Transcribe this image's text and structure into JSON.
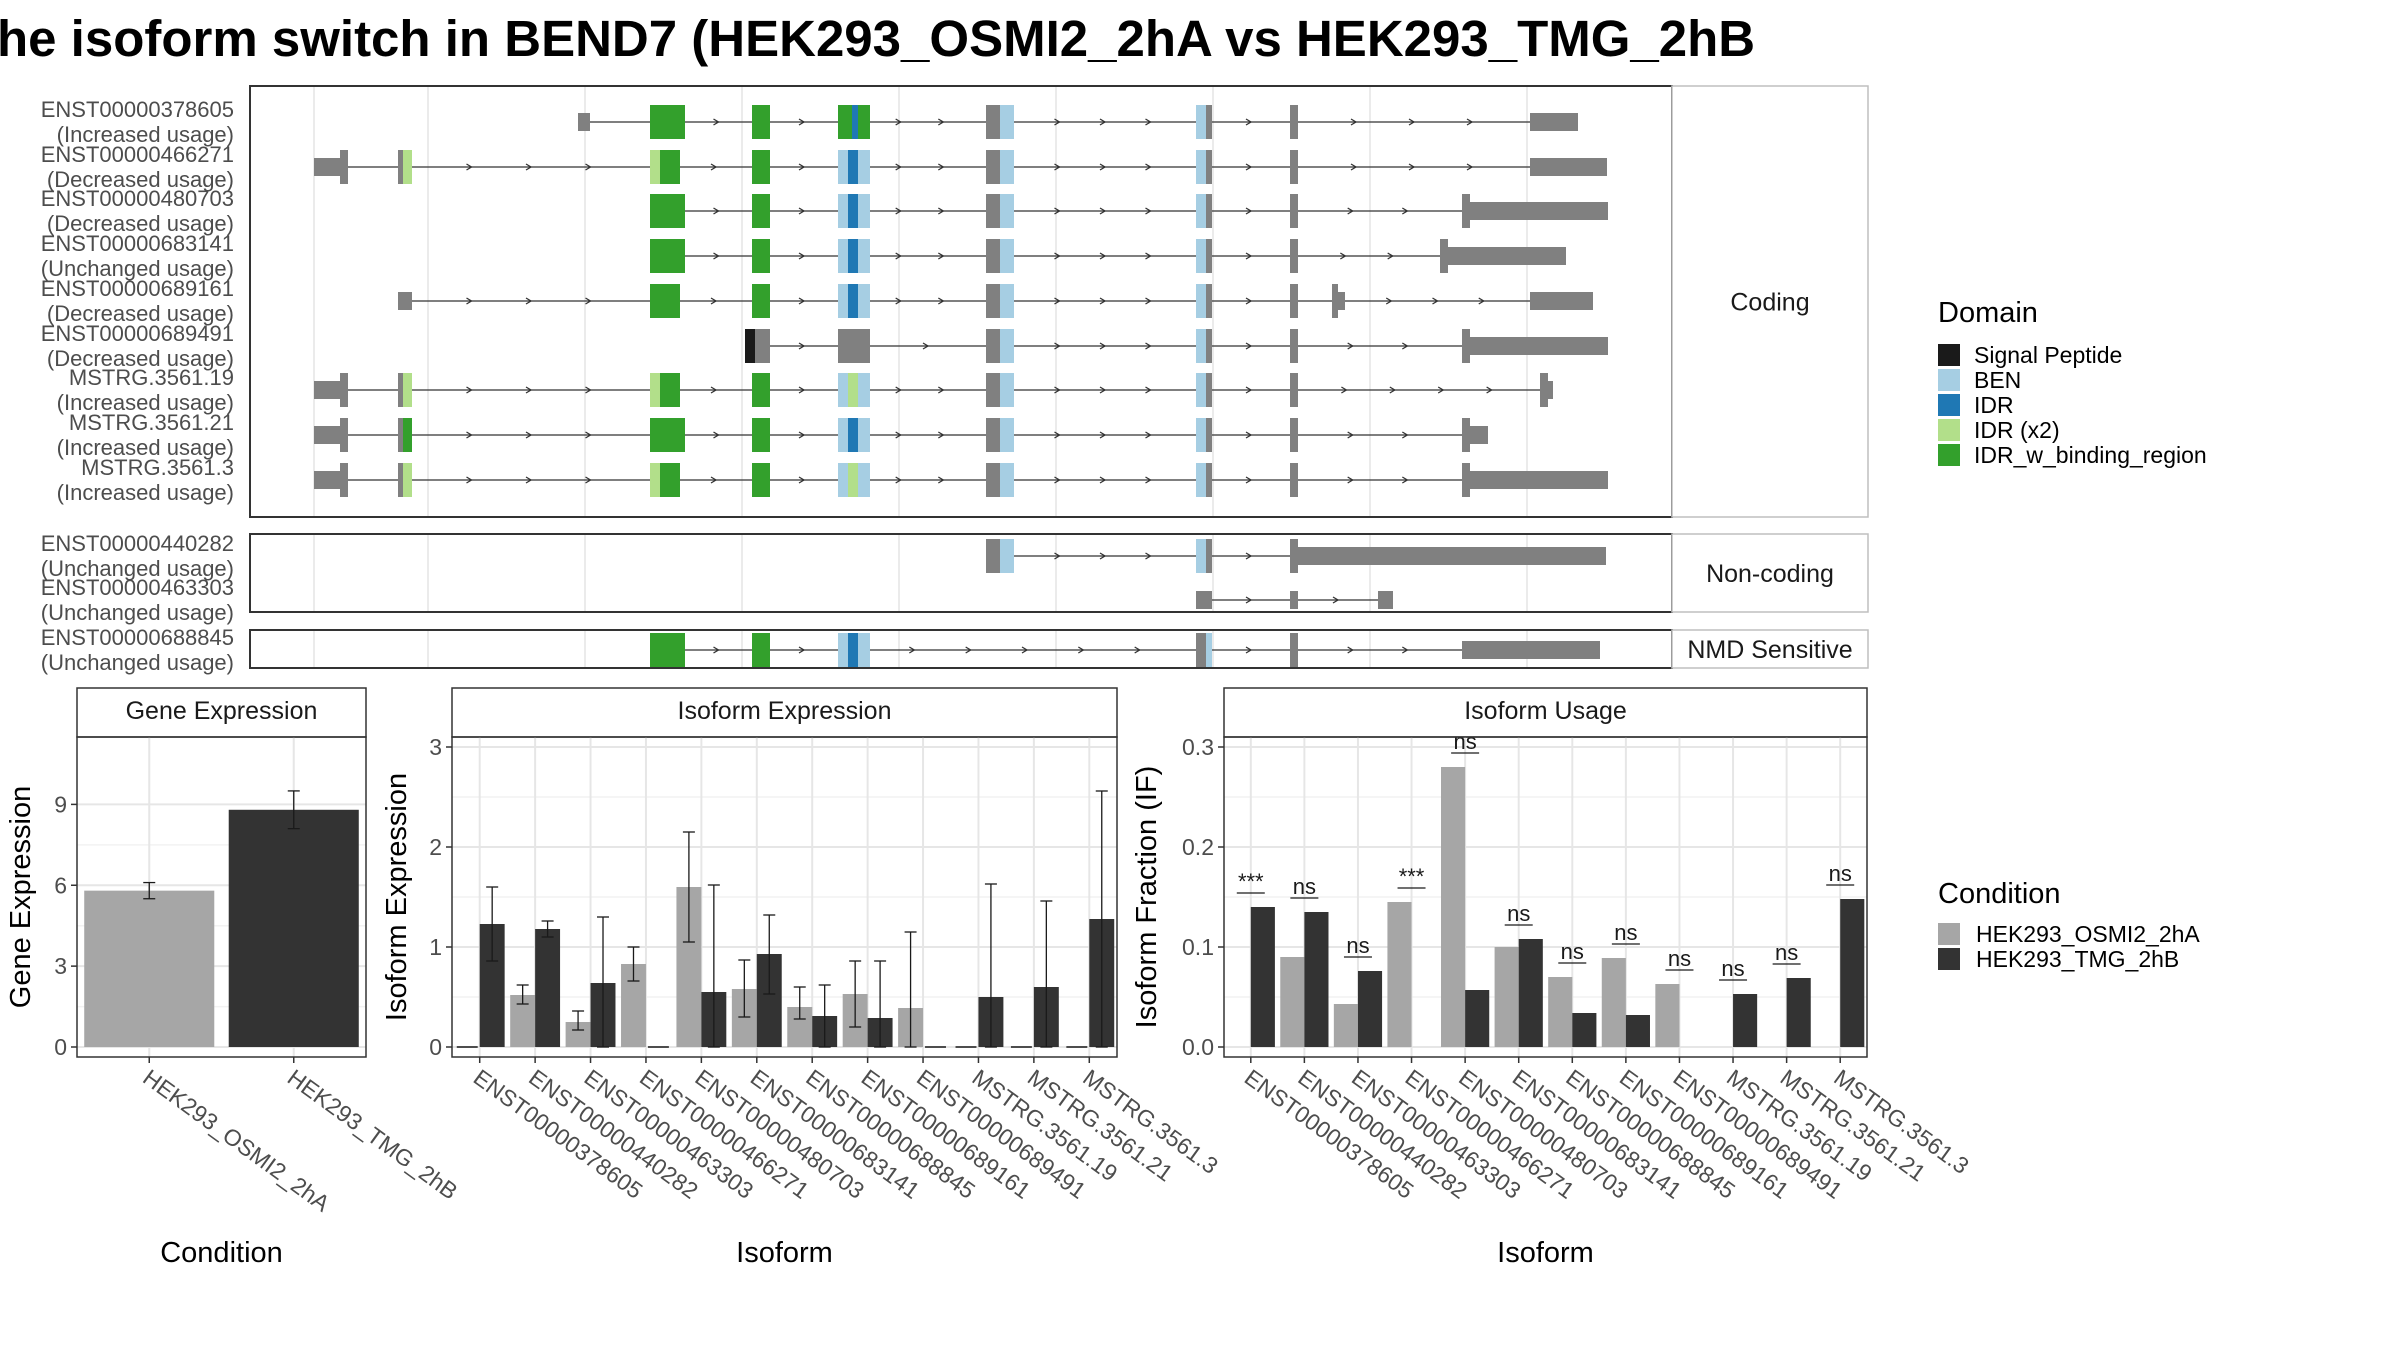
{
  "title": "he isoform switch in BEND7 (HEK293_OSMI2_2hA vs HEK293_TMG_2hB",
  "colors": {
    "signal_peptide": "#1a1a1a",
    "ben": "#a6cee3",
    "idr": "#1f78b4",
    "idr_x2": "#b2df8a",
    "idr_binding": "#33a02c",
    "exon": "#808080",
    "condition_a": "#a6a6a6",
    "condition_b": "#333333"
  },
  "structure": {
    "facets": [
      "Coding",
      "Non-coding",
      "NMD Sensitive"
    ],
    "domain_legend_title": "Domain",
    "domains": [
      "Signal Peptide",
      "BEN",
      "IDR",
      "IDR (x2)",
      "IDR_w_binding_region"
    ],
    "isoforms": [
      {
        "id": "ENST00000378605",
        "usage": "(Increased usage)",
        "facet": "Coding"
      },
      {
        "id": "ENST00000466271",
        "usage": "(Decreased usage)",
        "facet": "Coding"
      },
      {
        "id": "ENST00000480703",
        "usage": "(Decreased usage)",
        "facet": "Coding"
      },
      {
        "id": "ENST00000683141",
        "usage": "(Unchanged usage)",
        "facet": "Coding"
      },
      {
        "id": "ENST00000689161",
        "usage": "(Decreased usage)",
        "facet": "Coding"
      },
      {
        "id": "ENST00000689491",
        "usage": "(Decreased usage)",
        "facet": "Coding"
      },
      {
        "id": "MSTRG.3561.19",
        "usage": "(Increased usage)",
        "facet": "Coding"
      },
      {
        "id": "MSTRG.3561.21",
        "usage": "(Increased usage)",
        "facet": "Coding"
      },
      {
        "id": "MSTRG.3561.3",
        "usage": "(Increased usage)",
        "facet": "Coding"
      },
      {
        "id": "ENST00000440282",
        "usage": "(Unchanged usage)",
        "facet": "Non-coding"
      },
      {
        "id": "ENST00000463303",
        "usage": "(Unchanged usage)",
        "facet": "Non-coding"
      },
      {
        "id": "ENST00000688845",
        "usage": "(Unchanged usage)",
        "facet": "NMD Sensitive"
      }
    ]
  },
  "chart_data": [
    {
      "type": "bar",
      "title": "Gene Expression",
      "xlabel": "Condition",
      "ylabel": "Gene Expression",
      "categories": [
        "HEK293_OSMI2_2hA",
        "HEK293_TMG_2hB"
      ],
      "values": [
        5.8,
        8.8
      ],
      "error_low": [
        5.5,
        8.1
      ],
      "error_high": [
        6.1,
        9.5
      ],
      "ylim": [
        0,
        11.5
      ],
      "yticks": [
        0,
        3,
        6,
        9
      ]
    },
    {
      "type": "bar",
      "title": "Isoform Expression",
      "xlabel": "Isoform",
      "ylabel": "Isoform Expression",
      "categories": [
        "ENST00000378605",
        "ENST00000440282",
        "ENST00000463303",
        "ENST00000466271",
        "ENST00000480703",
        "ENST00000683141",
        "ENST00000688845",
        "ENST00000689161",
        "ENST00000689491",
        "MSTRG.3561.19",
        "MSTRG.3561.21",
        "MSTRG.3561.3"
      ],
      "series": [
        {
          "name": "HEK293_OSMI2_2hA",
          "values": [
            0.0,
            0.52,
            0.25,
            0.83,
            1.6,
            0.58,
            0.4,
            0.53,
            0.39,
            0.0,
            0.0,
            0.0
          ],
          "error_low": [
            0.0,
            0.43,
            0.17,
            0.66,
            1.05,
            0.3,
            0.28,
            0.2,
            0.0,
            0.0,
            0.0,
            0.0
          ],
          "error_high": [
            0.0,
            0.62,
            0.36,
            1.0,
            2.15,
            0.87,
            0.6,
            0.86,
            1.15,
            0.0,
            0.0,
            0.0
          ]
        },
        {
          "name": "HEK293_TMG_2hB",
          "values": [
            1.23,
            1.18,
            0.64,
            0.0,
            0.55,
            0.93,
            0.31,
            0.29,
            0.0,
            0.5,
            0.6,
            1.28
          ],
          "error_low": [
            0.86,
            1.1,
            0.0,
            0.0,
            0.0,
            0.53,
            0.0,
            0.0,
            0.0,
            0.0,
            0.0,
            0.0
          ],
          "error_high": [
            1.6,
            1.26,
            1.3,
            0.0,
            1.62,
            1.32,
            0.62,
            0.86,
            0.0,
            1.63,
            1.46,
            2.56
          ]
        }
      ],
      "ylim": [
        0,
        3.1
      ],
      "yticks": [
        0,
        1,
        2,
        3
      ]
    },
    {
      "type": "bar",
      "title": "Isoform Usage",
      "xlabel": "Isoform",
      "ylabel": "Isoform Fraction (IF)",
      "categories": [
        "ENST00000378605",
        "ENST00000440282",
        "ENST00000463303",
        "ENST00000466271",
        "ENST00000480703",
        "ENST00000683141",
        "ENST00000688845",
        "ENST00000689161",
        "ENST00000689491",
        "MSTRG.3561.19",
        "MSTRG.3561.21",
        "MSTRG.3561.3"
      ],
      "series": [
        {
          "name": "HEK293_OSMI2_2hA",
          "values": [
            0.0,
            0.09,
            0.043,
            0.145,
            0.28,
            0.1,
            0.07,
            0.089,
            0.063,
            0.0,
            0.0,
            0.0
          ]
        },
        {
          "name": "HEK293_TMG_2hB",
          "values": [
            0.14,
            0.135,
            0.076,
            0.0,
            0.057,
            0.108,
            0.034,
            0.032,
            0.0,
            0.053,
            0.069,
            0.148
          ]
        }
      ],
      "significance": [
        "***",
        "ns",
        "ns",
        "***",
        "ns",
        "ns",
        "ns",
        "ns",
        "ns",
        "ns",
        "ns",
        "ns"
      ],
      "ylim": [
        0,
        0.31
      ],
      "yticks": [
        0.0,
        0.1,
        0.2,
        0.3
      ],
      "legend_title": "Condition",
      "legend_entries": [
        "HEK293_OSMI2_2hA",
        "HEK293_TMG_2hB"
      ]
    }
  ]
}
